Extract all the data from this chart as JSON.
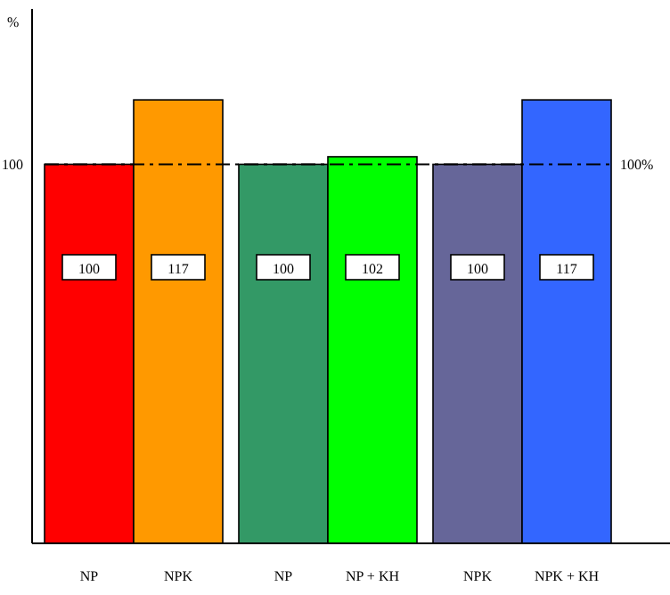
{
  "chart_data": {
    "type": "bar",
    "ylabel": "%",
    "categories": [
      "NP",
      "NPK",
      "NP",
      "NP + KH",
      "NPK",
      "NPK + KH"
    ],
    "values": [
      100,
      117,
      100,
      102,
      100,
      117
    ],
    "colors": [
      "#ff0000",
      "#ff9900",
      "#339966",
      "#00ff00",
      "#666699",
      "#3366ff"
    ],
    "ylim": [
      0,
      141
    ],
    "yticks": [
      100
    ],
    "grid": false,
    "data_labels": true,
    "ref_lines": [
      {
        "axis": "y",
        "value": 100,
        "label": "100%",
        "color": "#000000",
        "line_style": "dashdot"
      }
    ]
  }
}
